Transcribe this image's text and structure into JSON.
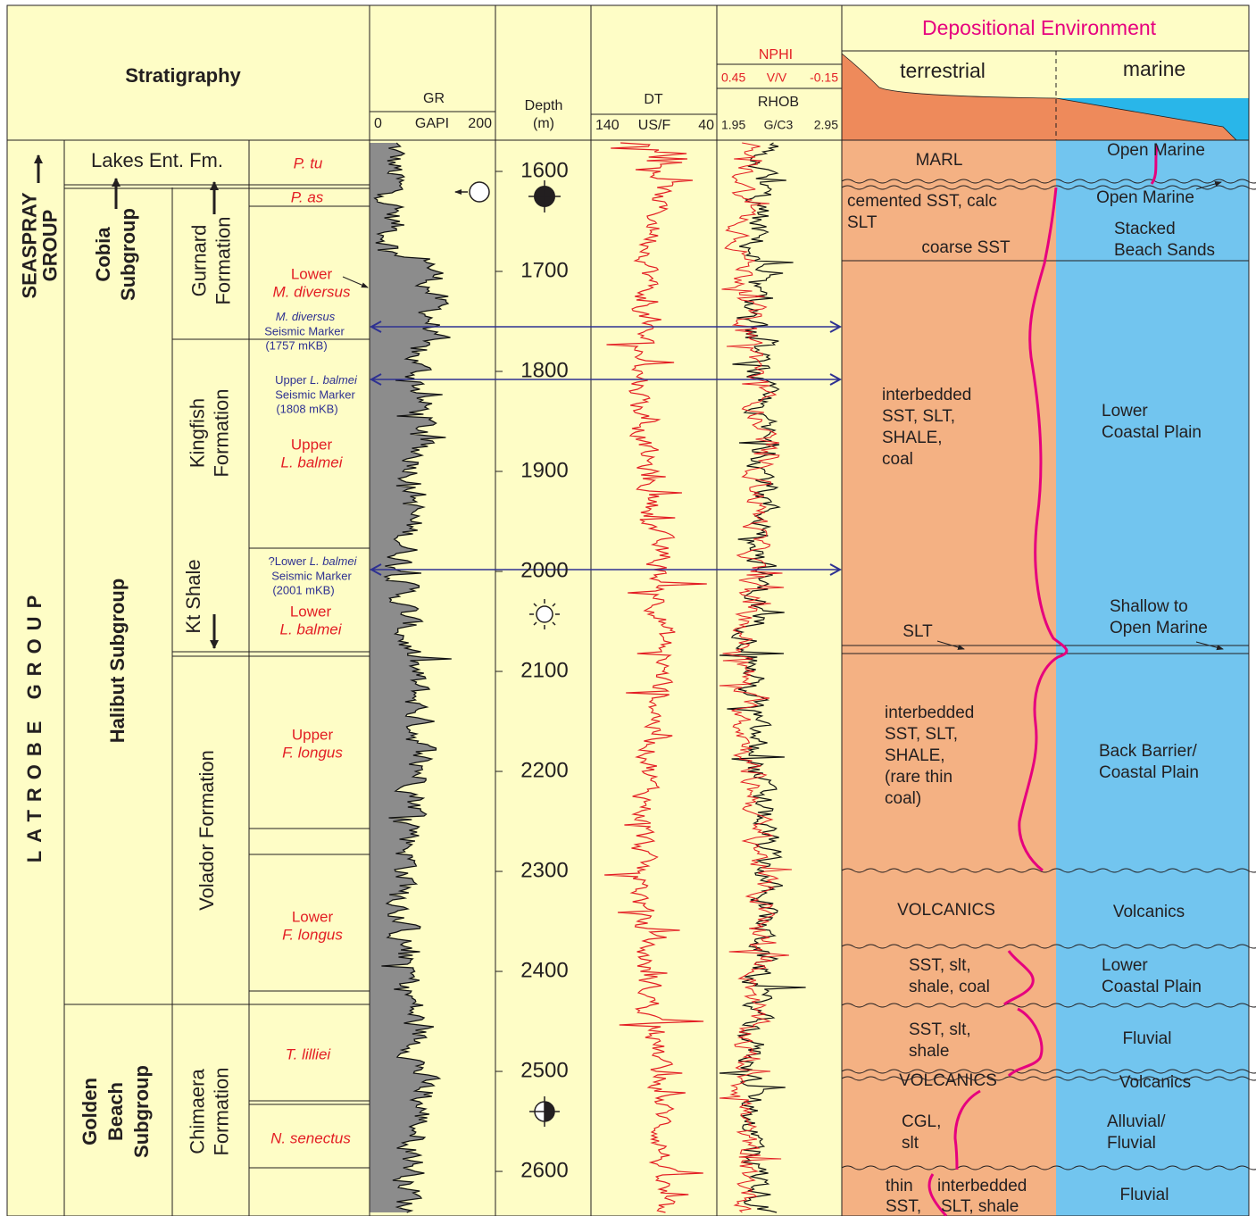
{
  "stratigraphy": {
    "title": "Stratigraphy",
    "groups": [
      [
        "SEASPRAY",
        "GROUP"
      ],
      [
        "LATROBE GROUP"
      ]
    ],
    "subgroups": [
      [
        "Lakes Ent. Fm."
      ],
      [
        "Cobia",
        "Subgroup"
      ],
      [
        "Halibut Subgroup"
      ],
      [
        "Golden",
        "Beach",
        "Subgroup"
      ]
    ],
    "formations": [
      [
        "Gurnard",
        "Formation"
      ],
      [
        "Kingfish",
        "Formation"
      ],
      [
        "Kt Shale"
      ],
      [
        "Volador Formation"
      ],
      [
        "Chimaera",
        "Formation"
      ]
    ],
    "biozones": [
      {
        "name": "P. tu"
      },
      {
        "name": "P. as"
      },
      {
        "qualifier": "Lower",
        "name": "M. diversus"
      },
      {
        "qualifier": "Upper",
        "name": "L. balmei"
      },
      {
        "qualifier": "Lower",
        "name": "L. balmei"
      },
      {
        "qualifier": "Upper",
        "name": "F. longus"
      },
      {
        "qualifier": "Lower",
        "name": "F. longus"
      },
      {
        "name": "T. lilliei"
      },
      {
        "name": "N. senectus"
      }
    ],
    "seismic_markers": [
      {
        "zone": "M. diversus",
        "label": "Seismic Marker",
        "depth": "(1757 mKB)"
      },
      {
        "qualifier": "Upper",
        "zone": "L. balmei",
        "label": "Seismic Marker",
        "depth": "(1808 mKB)"
      },
      {
        "qualifier": "?Lower",
        "zone": "L. balmei",
        "label": "Seismic Marker",
        "depth": "(2001 mKB)"
      }
    ]
  },
  "logs": {
    "gr": {
      "name": "GR",
      "unit": "GAPI",
      "min": "0",
      "max": "200"
    },
    "depth": {
      "name": "Depth",
      "unit": "(m)",
      "ylim": [
        1568.75,
        2644.6
      ],
      "ticks": [
        1600,
        1700,
        1800,
        1900,
        2000,
        2100,
        2200,
        2300,
        2400,
        2500,
        2600
      ]
    },
    "dt": {
      "name": "DT",
      "unit": "US/F",
      "min": "140",
      "max": "40"
    },
    "nphi": {
      "name": "NPHI",
      "unit": "V/V",
      "min": "0.45",
      "max": "-0.15"
    },
    "rhob": {
      "name": "RHOB",
      "unit": "G/C3",
      "min": "1.95",
      "max": "2.95"
    }
  },
  "environment": {
    "title": "Depositional Environment",
    "terrestrial": "terrestrial",
    "marine": "marine",
    "lithology": [
      [
        "MARL"
      ],
      [
        "cemented SST, calc"
      ],
      [
        "SLT"
      ],
      [
        "coarse SST"
      ],
      [
        "interbedded",
        "SST, SLT,",
        "SHALE,",
        "coal"
      ],
      [
        "SLT"
      ],
      [
        "interbedded",
        "SST, SLT,",
        "SHALE,",
        "(rare thin",
        "coal)"
      ],
      [
        "VOLCANICS"
      ],
      [
        "SST, slt,",
        "shale, coal"
      ],
      [
        "SST, slt,",
        "shale"
      ],
      [
        "VOLCANICS"
      ],
      [
        "CGL,",
        "slt"
      ],
      [
        "thin"
      ],
      [
        "interbedded"
      ],
      [
        "SST,"
      ],
      [
        "SLT, shale"
      ]
    ],
    "settings": [
      [
        "Open Marine"
      ],
      [
        "Open Marine"
      ],
      [
        "Stacked",
        "Beach Sands"
      ],
      [
        "Lower",
        "Coastal Plain"
      ],
      [
        "Shallow to",
        "Open Marine"
      ],
      [
        "Back Barrier/",
        "Coastal Plain"
      ],
      [
        "Volcanics"
      ],
      [
        "Lower",
        "Coastal Plain"
      ],
      [
        "Fluvial"
      ],
      [
        "Volcanics"
      ],
      [
        "Alluvial/",
        "Fluvial"
      ],
      [
        "Fluvial"
      ]
    ]
  }
}
